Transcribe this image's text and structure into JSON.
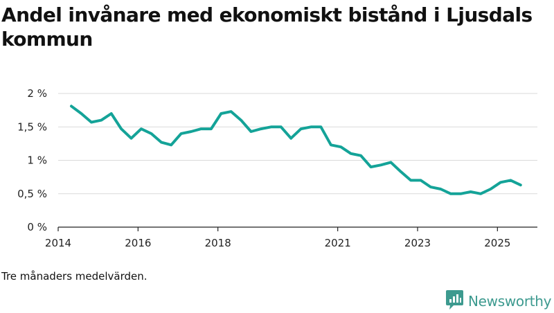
{
  "title": "Andel invånare med ekonomiskt bistånd i Ljusdals kommun",
  "footnote": "Tre månaders medelvärden.",
  "brand": {
    "name": "Newsworthy",
    "icon": "newsworthy-logo-icon"
  },
  "colors": {
    "line": "#14a398",
    "grid": "#d9d9d9",
    "axis": "#222222",
    "brand": "#3d9a8f"
  },
  "chart_data": {
    "type": "line",
    "title": "Andel invånare med ekonomiskt bistånd i Ljusdals kommun",
    "xlabel": "",
    "ylabel": "",
    "ylim": [
      0,
      2
    ],
    "xlim": [
      2014.0,
      2026.0
    ],
    "yticks": [
      {
        "value": 0,
        "label": "0 %"
      },
      {
        "value": 0.5,
        "label": "0,5 %"
      },
      {
        "value": 1,
        "label": "1 %"
      },
      {
        "value": 1.5,
        "label": "1,5 %"
      },
      {
        "value": 2,
        "label": "2 %"
      }
    ],
    "xticks": [
      {
        "value": 2014.0,
        "label": "2014"
      },
      {
        "value": 2016.0,
        "label": "2016"
      },
      {
        "value": 2018.0,
        "label": "2018"
      },
      {
        "value": 2021.0,
        "label": "2021"
      },
      {
        "value": 2023.0,
        "label": "2023"
      },
      {
        "value": 2025.0,
        "label": "2025"
      }
    ],
    "grid": true,
    "series": [
      {
        "name": "Andel invånare med ekonomiskt bistånd",
        "x": [
          2014.33,
          2014.58,
          2014.83,
          2015.08,
          2015.33,
          2015.58,
          2015.83,
          2016.08,
          2016.33,
          2016.58,
          2016.83,
          2017.08,
          2017.33,
          2017.58,
          2017.83,
          2018.08,
          2018.33,
          2018.58,
          2018.83,
          2019.08,
          2019.33,
          2019.58,
          2019.83,
          2020.08,
          2020.33,
          2020.58,
          2020.83,
          2021.08,
          2021.33,
          2021.58,
          2021.83,
          2022.08,
          2022.33,
          2022.58,
          2022.83,
          2023.08,
          2023.33,
          2023.58,
          2023.83,
          2024.08,
          2024.33,
          2024.58,
          2024.83,
          2025.08,
          2025.33,
          2025.58
        ],
        "values": [
          1.81,
          1.7,
          1.57,
          1.6,
          1.7,
          1.47,
          1.33,
          1.47,
          1.4,
          1.27,
          1.23,
          1.4,
          1.43,
          1.47,
          1.47,
          1.7,
          1.73,
          1.6,
          1.43,
          1.47,
          1.5,
          1.5,
          1.33,
          1.47,
          1.5,
          1.5,
          1.23,
          1.2,
          1.1,
          1.07,
          0.9,
          0.93,
          0.97,
          0.83,
          0.7,
          0.7,
          0.6,
          0.57,
          0.5,
          0.5,
          0.53,
          0.5,
          0.57,
          0.67,
          0.7,
          0.63
        ]
      }
    ]
  }
}
